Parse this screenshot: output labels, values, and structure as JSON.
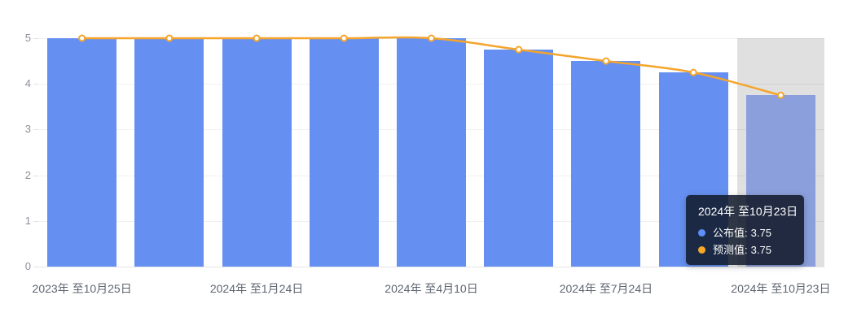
{
  "chart_data": {
    "type": "bar",
    "title": "",
    "xlabel": "",
    "ylabel": "",
    "categories": [
      "2023年 至10月25日",
      "",
      "2024年 至1月24日",
      "",
      "2024年 至4月10日",
      "",
      "2024年 至7月24日",
      "",
      "2024年 至10月23日"
    ],
    "series": [
      {
        "name": "公布值",
        "type": "bar",
        "color": "#6590f1",
        "faded_color": "#8b9fdc",
        "values": [
          5,
          5,
          5,
          5,
          5,
          4.75,
          4.5,
          4.25,
          3.75
        ]
      },
      {
        "name": "预测值",
        "type": "line",
        "color": "#f5a42c",
        "marker_fill": "#ffffff",
        "values": [
          5,
          5,
          5,
          5,
          5,
          4.75,
          4.5,
          4.25,
          3.75
        ]
      }
    ],
    "ylim": [
      0,
      5
    ],
    "yticks": [
      0,
      1,
      2,
      3,
      4,
      5
    ],
    "grid": true,
    "legend_position": "none",
    "highlight_index": 8
  },
  "tooltip": {
    "title": "2024年 至10月23日",
    "rows": [
      {
        "series": "公布值:",
        "value": "3.75",
        "color": "#5b8ff9"
      },
      {
        "series": "预测值:",
        "value": "3.75",
        "color": "#f7a827"
      }
    ]
  }
}
